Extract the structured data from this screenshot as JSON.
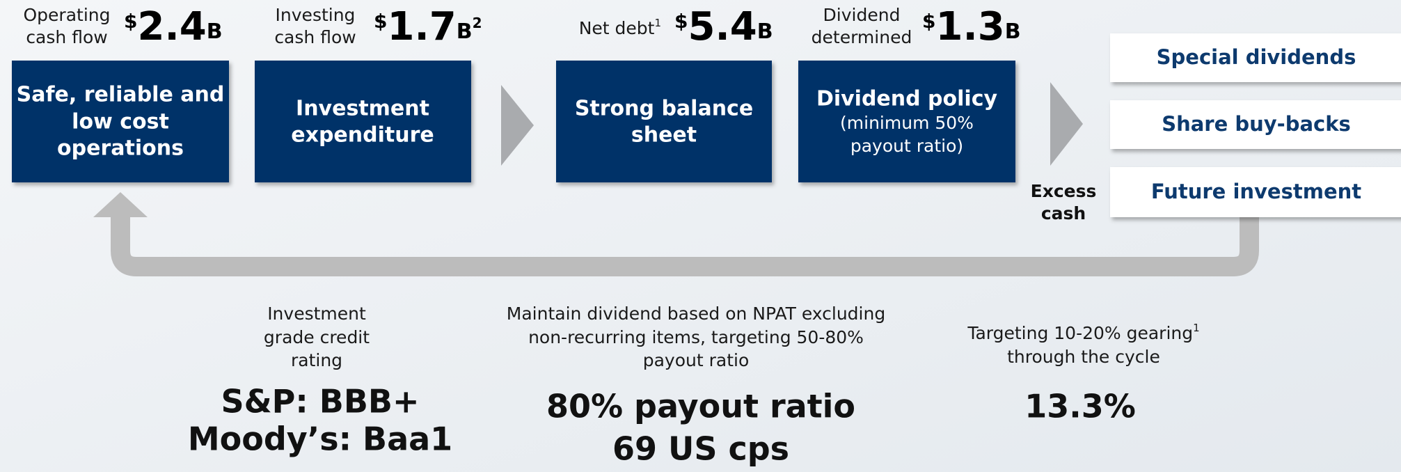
{
  "metrics": [
    {
      "label": [
        "Operating",
        "cash flow"
      ],
      "currency": "$",
      "amount": "2.4",
      "unit": "B"
    },
    {
      "label": [
        "Investing",
        "cash flow"
      ],
      "currency": "$",
      "amount": "1.7",
      "unit": "B",
      "unit_note": "2"
    },
    {
      "label": [
        "Net debt"
      ],
      "label_note": "1",
      "currency": "$",
      "amount": "5.4",
      "unit": "B"
    },
    {
      "label": [
        "Dividend",
        "determined"
      ],
      "currency": "$",
      "amount": "1.3",
      "unit": "B"
    }
  ],
  "boxes": [
    {
      "lines": [
        "Safe, reliable and",
        "low cost",
        "operations"
      ]
    },
    {
      "lines": [
        "Investment",
        "expenditure"
      ]
    },
    {
      "lines": [
        "Strong balance",
        "sheet"
      ]
    },
    {
      "lines": [
        "Dividend policy"
      ],
      "sub": [
        "(minimum 50%",
        "payout ratio)"
      ]
    }
  ],
  "excess_cash": [
    "Excess",
    "cash"
  ],
  "options": [
    "Special dividends",
    "Share buy-backs",
    "Future investment"
  ],
  "outcomes": [
    {
      "desc": [
        "Investment",
        "grade credit",
        "rating"
      ],
      "values": [
        "S&P: BBB+",
        "Moody’s: Baa1"
      ]
    },
    {
      "desc": [
        "Maintain dividend based on NPAT excluding",
        "non-recurring items, targeting 50-80%",
        "payout ratio"
      ],
      "values": [
        "80% payout ratio",
        "69 US cps"
      ]
    },
    {
      "desc": [
        "Targeting 10-20% gearing",
        "through the cycle"
      ],
      "desc_note": "1",
      "values": [
        "13.3%"
      ]
    }
  ]
}
